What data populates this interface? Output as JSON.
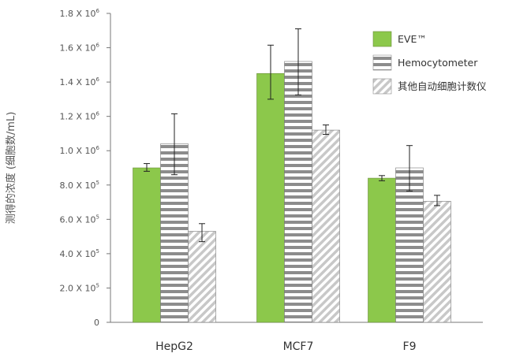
{
  "chart_data": {
    "type": "bar",
    "title": "",
    "xlabel": "",
    "ylabel": "测得的浓度 (细胞数/mL)",
    "ylim": [
      0,
      1800000
    ],
    "categories": [
      "HepG2",
      "MCF7",
      "F9"
    ],
    "y_ticks": [
      {
        "value": 0,
        "label": "0",
        "exp": ""
      },
      {
        "value": 200000,
        "label": "2.0 X 10",
        "exp": "5"
      },
      {
        "value": 400000,
        "label": "4.0 X 10",
        "exp": "5"
      },
      {
        "value": 600000,
        "label": "6.0 X 10",
        "exp": "5"
      },
      {
        "value": 800000,
        "label": "8.0 X 10",
        "exp": "5"
      },
      {
        "value": 1000000,
        "label": "1.0 X 10",
        "exp": "6"
      },
      {
        "value": 1200000,
        "label": "1.2 X 10",
        "exp": "6"
      },
      {
        "value": 1400000,
        "label": "1.4 X 10",
        "exp": "6"
      },
      {
        "value": 1600000,
        "label": "1.6 X 10",
        "exp": "6"
      },
      {
        "value": 1800000,
        "label": "1.8 X 10",
        "exp": "6"
      }
    ],
    "series": [
      {
        "name": "EVE™",
        "style": "solid",
        "color": "#8cc84b",
        "values": [
          900000,
          1450000,
          840000
        ],
        "err_low": [
          880000,
          1300000,
          825000
        ],
        "err_high": [
          925000,
          1615000,
          855000
        ]
      },
      {
        "name": "Hemocytometer",
        "style": "h-stripes",
        "color": "#8c8c8c",
        "values": [
          1040000,
          1520000,
          900000
        ],
        "err_low": [
          860000,
          1325000,
          765000
        ],
        "err_high": [
          1215000,
          1710000,
          1030000
        ]
      },
      {
        "name": "其他自动细胞计数仪",
        "style": "diag-stripes",
        "color": "#c8c8c8",
        "values": [
          530000,
          1120000,
          705000
        ],
        "err_low": [
          470000,
          1095000,
          680000
        ],
        "err_high": [
          575000,
          1150000,
          740000
        ]
      }
    ],
    "legend_position": "top-right",
    "grid": false
  }
}
